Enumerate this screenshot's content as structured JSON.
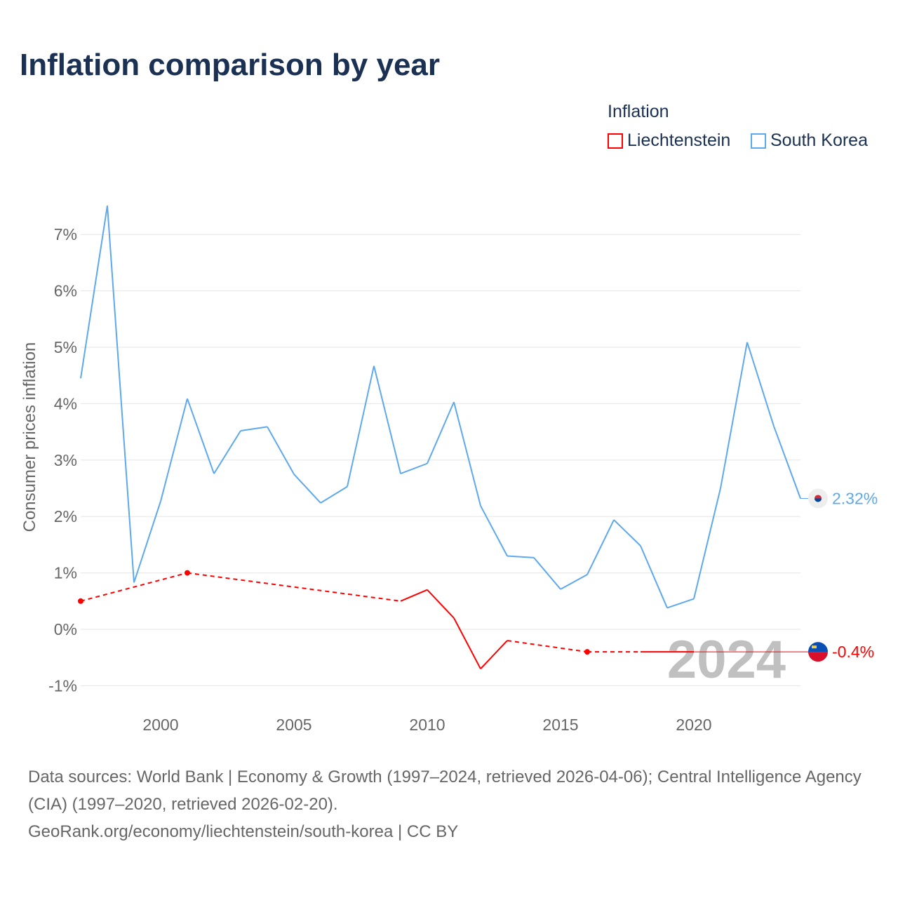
{
  "title": "Inflation comparison by year",
  "legend": {
    "title": "Inflation",
    "items": [
      {
        "label": "Liechtenstein",
        "color": "#ff0000"
      },
      {
        "label": "South Korea",
        "color": "#5ea8ee"
      }
    ]
  },
  "footer": {
    "line1": "Data sources: World Bank | Economy & Growth (1997–2024, retrieved 2026-04-06); Central Intelligence Agency (CIA) (1997–2020, retrieved 2026-02-20).",
    "line2": "GeoRank.org/economy/liechtenstein/south-korea | CC BY"
  },
  "chart_data": {
    "type": "line",
    "title": "Inflation comparison by year",
    "xlabel": "",
    "ylabel": "Consumer prices inflation",
    "xlim": [
      1997,
      2024
    ],
    "ylim": [
      -1.3,
      7.8
    ],
    "xticks": [
      2000,
      2005,
      2010,
      2015,
      2020
    ],
    "yticks": [
      {
        "v": -1,
        "label": "-1%"
      },
      {
        "v": 0,
        "label": "0%"
      },
      {
        "v": 1,
        "label": "1%"
      },
      {
        "v": 2,
        "label": "2%"
      },
      {
        "v": 3,
        "label": "3%"
      },
      {
        "v": 4,
        "label": "4%"
      },
      {
        "v": 5,
        "label": "5%"
      },
      {
        "v": 6,
        "label": "6%"
      },
      {
        "v": 7,
        "label": "7%"
      }
    ],
    "year_watermark": "2024",
    "series": [
      {
        "name": "South Korea",
        "color": "#5ea8ee",
        "end_label": "2.32%",
        "points": [
          [
            1997,
            4.45
          ],
          [
            1998,
            7.51
          ],
          [
            1999,
            0.83
          ],
          [
            2000,
            2.27
          ],
          [
            2001,
            4.09
          ],
          [
            2002,
            2.76
          ],
          [
            2003,
            3.52
          ],
          [
            2004,
            3.59
          ],
          [
            2005,
            2.75
          ],
          [
            2006,
            2.24
          ],
          [
            2007,
            2.53
          ],
          [
            2008,
            4.67
          ],
          [
            2009,
            2.76
          ],
          [
            2010,
            2.94
          ],
          [
            2011,
            4.03
          ],
          [
            2012,
            2.19
          ],
          [
            2013,
            1.3
          ],
          [
            2014,
            1.27
          ],
          [
            2015,
            0.71
          ],
          [
            2016,
            0.97
          ],
          [
            2017,
            1.94
          ],
          [
            2018,
            1.48
          ],
          [
            2019,
            0.38
          ],
          [
            2020,
            0.54
          ],
          [
            2021,
            2.5
          ],
          [
            2022,
            5.09
          ],
          [
            2023,
            3.6
          ],
          [
            2024,
            2.32
          ]
        ]
      },
      {
        "name": "Liechtenstein",
        "color": "#ff0000",
        "end_label": "-0.4%",
        "points": [
          [
            1997,
            0.5
          ],
          [
            2001,
            1.0
          ],
          [
            2009,
            0.5
          ],
          [
            2010,
            0.7
          ],
          [
            2011,
            0.2
          ],
          [
            2012,
            -0.7
          ],
          [
            2013,
            -0.2
          ],
          [
            2016,
            -0.4
          ],
          [
            2018,
            -0.4
          ],
          [
            2019,
            -0.4
          ],
          [
            2020,
            -0.4
          ]
        ]
      }
    ]
  }
}
